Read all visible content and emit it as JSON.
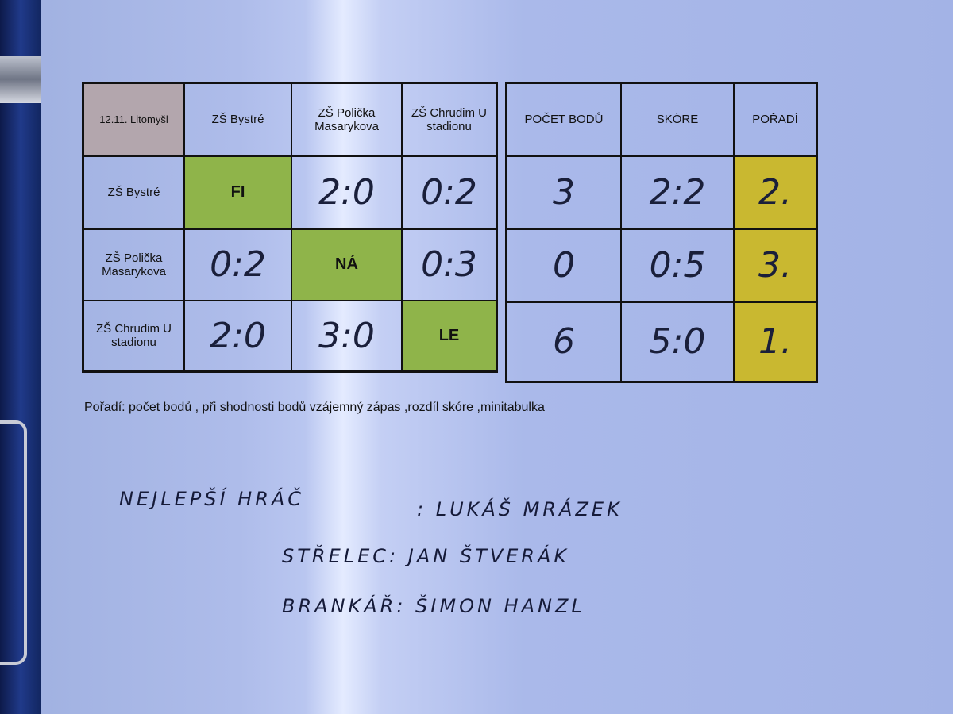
{
  "header": {
    "corner": "12.11. Litomyšl",
    "teams": [
      "ZŠ Bystré",
      "ZŠ Polička Masarykova",
      "ZŠ Chrudim U stadionu"
    ],
    "stats": [
      "POČET BODŮ",
      "SKÓRE",
      "POŘADÍ"
    ]
  },
  "rows": [
    {
      "team": "ZŠ Bystré",
      "cells": [
        "FI",
        "2:0",
        "0:2"
      ],
      "points": "3",
      "score": "2:2",
      "rank": "2."
    },
    {
      "team": "ZŠ Polička Masarykova",
      "cells": [
        "0:2",
        "NÁ",
        "0:3"
      ],
      "points": "0",
      "score": "0:5",
      "rank": "3."
    },
    {
      "team": "ZŠ Chrudim U stadionu",
      "cells": [
        "2:0",
        "3:0",
        "LE"
      ],
      "points": "6",
      "score": "5:0",
      "rank": "1."
    }
  ],
  "rule": "Pořadí: počet bodů , při shodnosti bodů vzájemný zápas ,rozdíl skóre ,minitabulka",
  "notes": {
    "best_player_label": "NEJLEPŠÍ HRÁČ",
    "best_player": ": LUKÁŠ MRÁZEK",
    "scorer": "STŘELEC: JAN ŠTVERÁK",
    "goalkeeper": "BRANKÁŘ: ŠIMON HANZL"
  },
  "colors": {
    "diagonal": "#8fb44a",
    "rank": "#c9b830",
    "corner": "#b3a6ad"
  }
}
